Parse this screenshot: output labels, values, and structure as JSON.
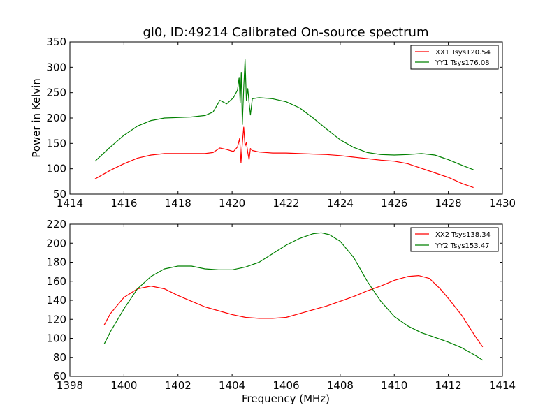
{
  "chart_data": [
    {
      "type": "line",
      "title": "gl0, ID:49214 Calibrated On-source spectrum",
      "xlabel": "",
      "ylabel": "Power in Kelvin",
      "xlim": [
        1414,
        1430
      ],
      "ylim": [
        50,
        350
      ],
      "xticks": [
        "1414",
        "1416",
        "1418",
        "1420",
        "1422",
        "1424",
        "1426",
        "1428",
        "1430"
      ],
      "yticks": [
        "50",
        "100",
        "150",
        "200",
        "250",
        "300",
        "350"
      ],
      "grid": false,
      "legend_position": "top-right",
      "series": [
        {
          "name": "XX1 Tsys120.54",
          "color": "#ff0000",
          "x": [
            1414.93,
            1415.5,
            1416.0,
            1416.5,
            1417.0,
            1417.5,
            1418.0,
            1418.5,
            1419.0,
            1419.3,
            1419.55,
            1419.8,
            1420.05,
            1420.2,
            1420.28,
            1420.33,
            1420.38,
            1420.43,
            1420.48,
            1420.53,
            1420.58,
            1420.63,
            1420.68,
            1420.75,
            1421.0,
            1421.5,
            1422.0,
            1422.5,
            1423.0,
            1423.5,
            1424.0,
            1424.5,
            1425.0,
            1425.5,
            1426.0,
            1426.5,
            1427.0,
            1427.5,
            1428.0,
            1428.5,
            1428.93
          ],
          "values": [
            80,
            97,
            110,
            121,
            127,
            130,
            130,
            130,
            130,
            132,
            141,
            138,
            134,
            143,
            160,
            112,
            150,
            182,
            145,
            152,
            132,
            118,
            140,
            136,
            133,
            131,
            131,
            130,
            129,
            128,
            126,
            123,
            120,
            117,
            115,
            110,
            101,
            92,
            83,
            71,
            63
          ]
        },
        {
          "name": "YY1 Tsys176.08",
          "color": "#008000",
          "x": [
            1414.93,
            1415.5,
            1416.0,
            1416.5,
            1417.0,
            1417.5,
            1418.0,
            1418.5,
            1419.0,
            1419.3,
            1419.55,
            1419.8,
            1420.05,
            1420.2,
            1420.26,
            1420.3,
            1420.34,
            1420.38,
            1420.43,
            1420.48,
            1420.53,
            1420.58,
            1420.63,
            1420.68,
            1420.75,
            1421.0,
            1421.5,
            1422.0,
            1422.5,
            1423.0,
            1423.5,
            1424.0,
            1424.5,
            1425.0,
            1425.5,
            1426.0,
            1426.5,
            1427.0,
            1427.5,
            1428.0,
            1428.5,
            1428.93
          ],
          "values": [
            115,
            143,
            166,
            184,
            195,
            200,
            201,
            202,
            205,
            212,
            235,
            228,
            240,
            255,
            280,
            230,
            290,
            187,
            260,
            315,
            235,
            258,
            230,
            206,
            238,
            240,
            238,
            232,
            220,
            200,
            178,
            157,
            142,
            132,
            128,
            127,
            128,
            130,
            127,
            118,
            107,
            98
          ]
        }
      ]
    },
    {
      "type": "line",
      "title": "",
      "xlabel": "Frequency (MHz)",
      "ylabel": "",
      "xlim": [
        1398,
        1414
      ],
      "ylim": [
        60,
        220
      ],
      "xticks": [
        "1398",
        "1400",
        "1402",
        "1404",
        "1406",
        "1408",
        "1410",
        "1412",
        "1414"
      ],
      "yticks": [
        "60",
        "80",
        "100",
        "120",
        "140",
        "160",
        "180",
        "200",
        "220"
      ],
      "grid": false,
      "legend_position": "top-right",
      "series": [
        {
          "name": "XX2 Tsys138.34",
          "color": "#ff0000",
          "x": [
            1399.27,
            1399.5,
            1400.0,
            1400.5,
            1401.0,
            1401.5,
            1402.0,
            1402.5,
            1403.0,
            1403.5,
            1404.0,
            1404.5,
            1405.0,
            1405.5,
            1406.0,
            1406.5,
            1407.0,
            1407.5,
            1408.0,
            1408.5,
            1409.0,
            1409.5,
            1410.0,
            1410.5,
            1410.9,
            1411.3,
            1411.7,
            1412.0,
            1412.5,
            1413.0,
            1413.27
          ],
          "values": [
            114,
            126,
            143,
            152,
            155,
            152,
            145,
            139,
            133,
            129,
            125,
            122,
            121,
            121,
            122,
            126,
            130,
            134,
            139,
            144,
            150,
            155,
            161,
            165,
            166,
            163,
            152,
            142,
            124,
            102,
            91
          ]
        },
        {
          "name": "YY2 Tsys153.47",
          "color": "#008000",
          "x": [
            1399.27,
            1399.5,
            1400.0,
            1400.5,
            1401.0,
            1401.5,
            1402.0,
            1402.5,
            1403.0,
            1403.5,
            1404.0,
            1404.5,
            1405.0,
            1405.5,
            1406.0,
            1406.5,
            1407.0,
            1407.3,
            1407.6,
            1408.0,
            1408.5,
            1409.0,
            1409.5,
            1410.0,
            1410.5,
            1411.0,
            1411.5,
            1412.0,
            1412.5,
            1413.0,
            1413.27
          ],
          "values": [
            94,
            107,
            131,
            152,
            165,
            173,
            176,
            176,
            173,
            172,
            172,
            175,
            180,
            189,
            198,
            205,
            210,
            211,
            209,
            202,
            185,
            160,
            139,
            123,
            113,
            106,
            101,
            96,
            90,
            82,
            77
          ]
        }
      ]
    }
  ]
}
